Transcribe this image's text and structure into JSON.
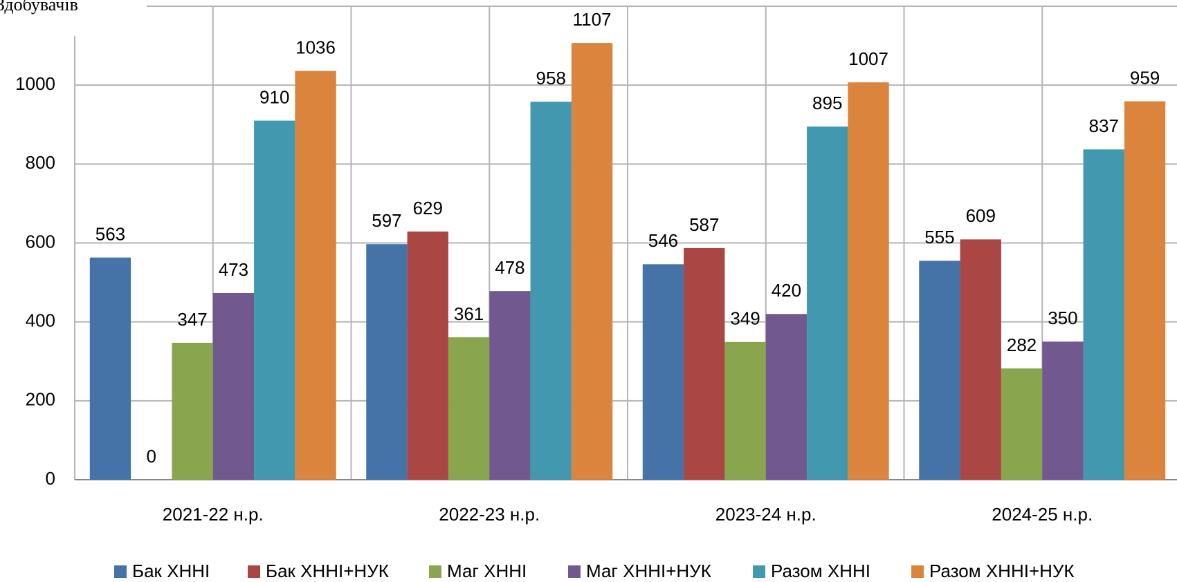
{
  "chart_data": {
    "type": "bar",
    "y_label": "Здобувачів",
    "categories": [
      "2021-22 н.р.",
      "2022-23 н.р.",
      "2023-24 н.р.",
      "2024-25 н.р."
    ],
    "series": [
      {
        "name": "Бак ХННІ",
        "color": "#4572a7",
        "values": [
          563,
          597,
          546,
          555
        ]
      },
      {
        "name": "Бак ХННІ+НУК",
        "color": "#aa4643",
        "values": [
          0,
          629,
          587,
          609
        ]
      },
      {
        "name": "Маг ХННІ",
        "color": "#89a54e",
        "values": [
          347,
          361,
          349,
          282
        ]
      },
      {
        "name": "Маг ХННІ+НУК",
        "color": "#71588f",
        "values": [
          473,
          478,
          420,
          350
        ]
      },
      {
        "name": "Разом ХННІ",
        "color": "#4198af",
        "values": [
          910,
          958,
          895,
          837
        ]
      },
      {
        "name": "Разом ХННІ+НУК",
        "color": "#db843d",
        "values": [
          1036,
          1107,
          1007,
          959
        ]
      }
    ],
    "ylim": [
      0,
      1200
    ],
    "yticks": [
      0,
      200,
      400,
      600,
      800,
      1000
    ],
    "grid": true,
    "legend": "bottom"
  }
}
